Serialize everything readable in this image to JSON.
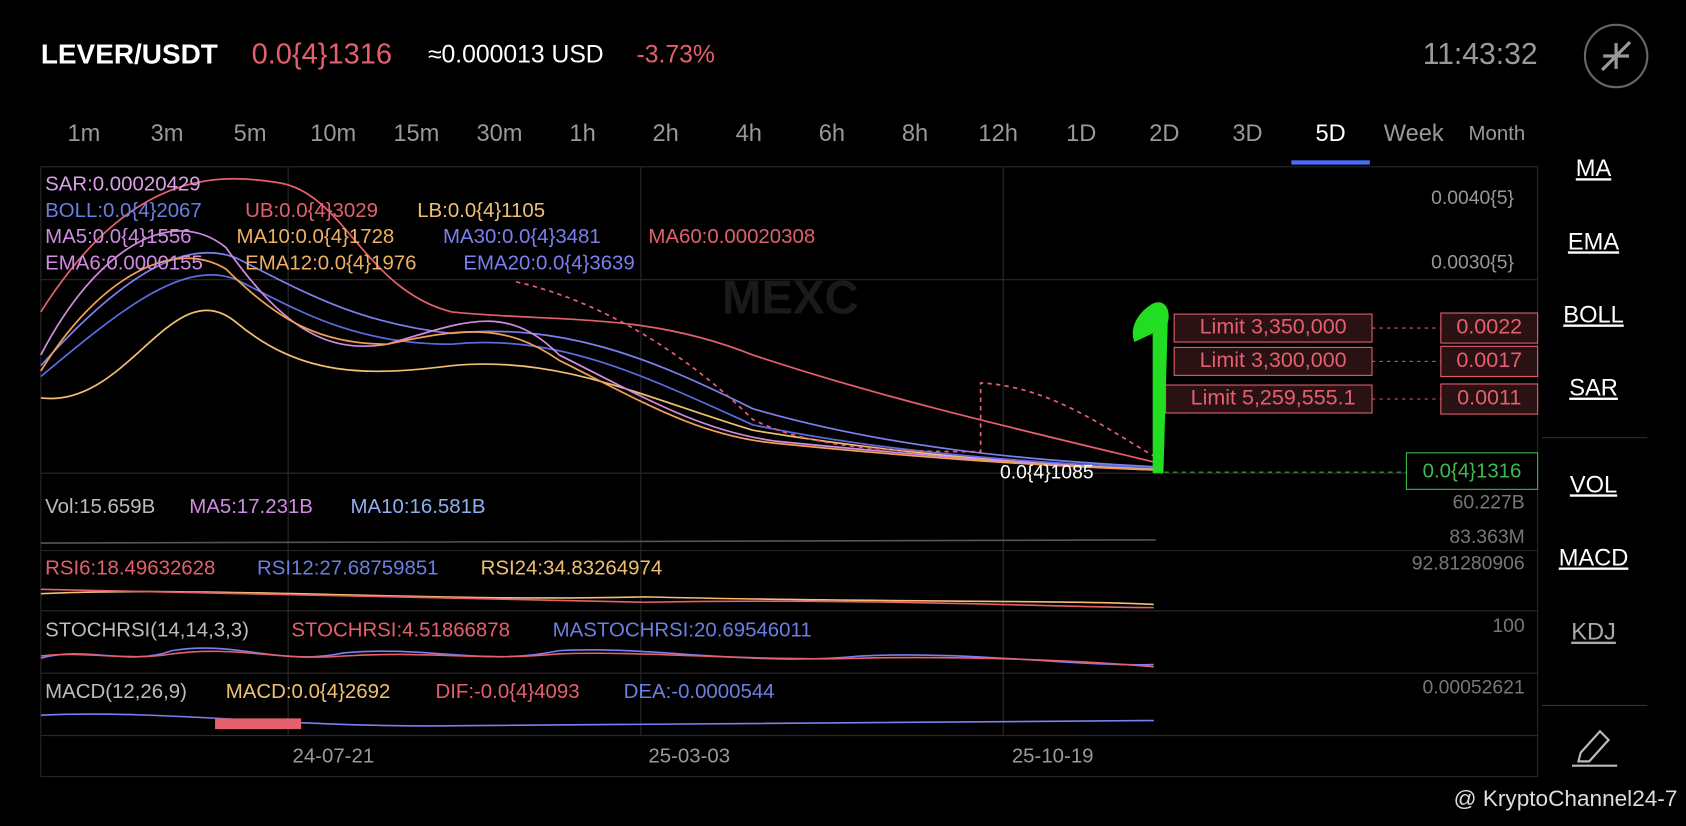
{
  "header": {
    "pair": "LEVER/USDT",
    "price": "0.0{4}1316",
    "usd": "≈0.000013 USD",
    "change": "-3.73%",
    "time": "11:43:32"
  },
  "timeframes": [
    "1m",
    "3m",
    "5m",
    "10m",
    "15m",
    "30m",
    "1h",
    "2h",
    "4h",
    "6h",
    "8h",
    "12h",
    "1D",
    "2D",
    "3D",
    "5D",
    "Week",
    "Month"
  ],
  "watermark_logo": "MEXC",
  "overlay": [
    [
      "SAR:0.00020429"
    ],
    [
      "BOLL:0.0{4}2067",
      "UB:0.0{4}3029",
      "LB:0.0{4}1105"
    ],
    [
      "MA5:0.0{4}1556",
      "MA10:0.0{4}1728",
      "MA30:0.0{4}3481",
      "MA60:0.00020308"
    ],
    [
      "EMA6:0.0000155",
      "EMA12:0.0{4}1976",
      "EMA20:0.0{4}3639"
    ]
  ],
  "price_axis": [
    "0.0040{5}",
    "0.0030{5}"
  ],
  "orders": [
    {
      "label": "Limit  3,350,000",
      "price": "0.0022"
    },
    {
      "label": "Limit  3,300,000",
      "price": "0.0017"
    },
    {
      "label": "Limit  5,259,555.1",
      "price": "0.0011"
    }
  ],
  "current_price": "0.0{4}1316",
  "low_label": "0.0{4}1085",
  "volume": {
    "items": [
      "Vol:15.659B",
      "MA5:17.231B",
      "MA10:16.581B"
    ],
    "axis": [
      "60.227B",
      "83.363M"
    ]
  },
  "rsi": {
    "items": [
      "RSI6:18.49632628",
      "RSI12:27.68759851",
      "RSI24:34.83264974"
    ],
    "axis": "92.81280906"
  },
  "stochrsi": {
    "items": [
      "STOCHRSI(14,14,3,3)",
      "STOCHRSI:4.51866878",
      "MASTOCHRSI:20.69546011"
    ],
    "axis": "100"
  },
  "macd": {
    "items": [
      "MACD(12,26,9)",
      "MACD:0.0{4}2692",
      "DIF:-0.0{4}4093",
      "DEA:-0.0000544"
    ],
    "axis": "0.00052621"
  },
  "dates": [
    "24-07-21",
    "25-03-03",
    "25-10-19"
  ],
  "side_menu": {
    "top": [
      "MA",
      "EMA",
      "BOLL",
      "SAR"
    ],
    "bottom": [
      "VOL",
      "MACD",
      "KDJ"
    ]
  },
  "credit": "@ KryptoChannel24-7"
}
